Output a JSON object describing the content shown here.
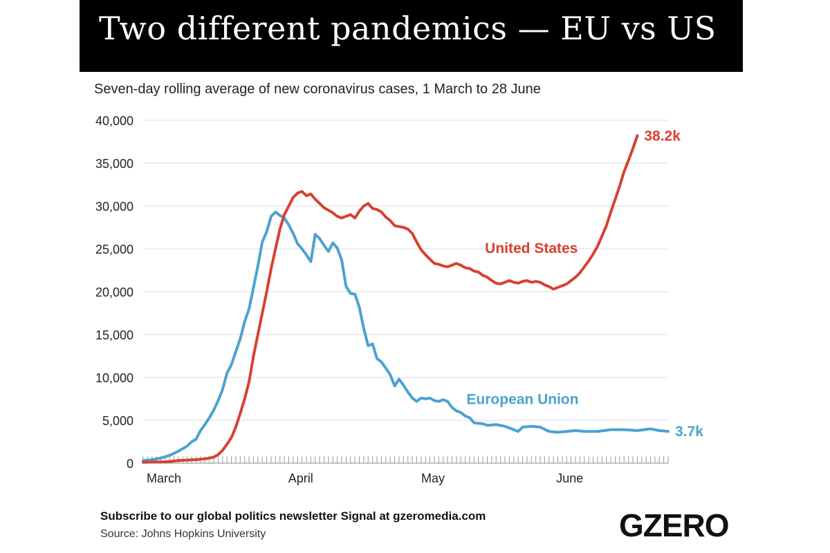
{
  "header": {
    "title": "Two different pandemics — EU vs US"
  },
  "chart_data": {
    "type": "line",
    "subtitle": "Seven-day rolling average of new coronavirus cases, 1 March to 28 June",
    "ylim": [
      0,
      40000
    ],
    "yticks": [
      0,
      5000,
      10000,
      15000,
      20000,
      25000,
      30000,
      35000,
      40000
    ],
    "ytick_labels": [
      "0",
      "5,000",
      "10,000",
      "15,000",
      "20,000",
      "25,000",
      "30,000",
      "35,000",
      "40,000"
    ],
    "x_day_range": [
      0,
      119
    ],
    "month_labels": [
      {
        "label": "March",
        "day": 0
      },
      {
        "label": "April",
        "day": 31
      },
      {
        "label": "May",
        "day": 61
      },
      {
        "label": "June",
        "day": 92
      }
    ],
    "series": [
      {
        "name": "European Union",
        "color": "#4aa3cf",
        "end_label": "3.7k",
        "points": [
          [
            0,
            300
          ],
          [
            2,
            400
          ],
          [
            4,
            600
          ],
          [
            6,
            900
          ],
          [
            8,
            1400
          ],
          [
            10,
            2000
          ],
          [
            11,
            2500
          ],
          [
            12,
            2800
          ],
          [
            13,
            3800
          ],
          [
            14,
            4500
          ],
          [
            15,
            5300
          ],
          [
            16,
            6200
          ],
          [
            17,
            7300
          ],
          [
            18,
            8600
          ],
          [
            19,
            10500
          ],
          [
            20,
            11500
          ],
          [
            21,
            13000
          ],
          [
            22,
            14500
          ],
          [
            23,
            16500
          ],
          [
            24,
            18000
          ],
          [
            25,
            20500
          ],
          [
            26,
            23000
          ],
          [
            27,
            25800
          ],
          [
            28,
            27000
          ],
          [
            29,
            28800
          ],
          [
            30,
            29300
          ],
          [
            31,
            28900
          ],
          [
            32,
            28600
          ],
          [
            33,
            27800
          ],
          [
            34,
            26800
          ],
          [
            35,
            25600
          ],
          [
            36,
            25000
          ],
          [
            37,
            24300
          ],
          [
            38,
            23500
          ],
          [
            39,
            26700
          ],
          [
            40,
            26200
          ],
          [
            41,
            25400
          ],
          [
            42,
            24700
          ],
          [
            43,
            25700
          ],
          [
            44,
            25100
          ],
          [
            45,
            23700
          ],
          [
            46,
            20600
          ],
          [
            47,
            19800
          ],
          [
            48,
            19700
          ],
          [
            49,
            18200
          ],
          [
            50,
            15700
          ],
          [
            51,
            13700
          ],
          [
            52,
            13900
          ],
          [
            53,
            12200
          ],
          [
            54,
            11800
          ],
          [
            55,
            11100
          ],
          [
            56,
            10300
          ],
          [
            57,
            9000
          ],
          [
            58,
            9800
          ],
          [
            59,
            9100
          ],
          [
            60,
            8300
          ],
          [
            61,
            7600
          ],
          [
            62,
            7200
          ],
          [
            63,
            7600
          ],
          [
            64,
            7500
          ],
          [
            65,
            7600
          ],
          [
            66,
            7300
          ],
          [
            67,
            7200
          ],
          [
            68,
            7400
          ],
          [
            69,
            7200
          ],
          [
            70,
            6500
          ],
          [
            71,
            6100
          ],
          [
            72,
            5900
          ],
          [
            73,
            5500
          ],
          [
            74,
            5300
          ],
          [
            75,
            4700
          ],
          [
            77,
            4600
          ],
          [
            78,
            4400
          ],
          [
            80,
            4500
          ],
          [
            82,
            4300
          ],
          [
            84,
            3900
          ],
          [
            85,
            3700
          ],
          [
            86,
            4200
          ],
          [
            88,
            4300
          ],
          [
            90,
            4200
          ],
          [
            92,
            3700
          ],
          [
            94,
            3600
          ],
          [
            96,
            3700
          ],
          [
            98,
            3800
          ],
          [
            100,
            3700
          ],
          [
            103,
            3700
          ],
          [
            106,
            3900
          ],
          [
            109,
            3900
          ],
          [
            112,
            3800
          ],
          [
            115,
            4000
          ],
          [
            117,
            3800
          ],
          [
            119,
            3700
          ]
        ]
      },
      {
        "name": "United States",
        "color": "#d8412f",
        "end_label": "38.2k",
        "points": [
          [
            0,
            100
          ],
          [
            5,
            150
          ],
          [
            8,
            300
          ],
          [
            12,
            400
          ],
          [
            14,
            500
          ],
          [
            16,
            700
          ],
          [
            17,
            1000
          ],
          [
            18,
            1500
          ],
          [
            19,
            2200
          ],
          [
            20,
            3000
          ],
          [
            21,
            4200
          ],
          [
            22,
            5800
          ],
          [
            23,
            7500
          ],
          [
            24,
            9500
          ],
          [
            25,
            12500
          ],
          [
            26,
            15000
          ],
          [
            27,
            17500
          ],
          [
            28,
            20000
          ],
          [
            29,
            22700
          ],
          [
            30,
            25000
          ],
          [
            31,
            27300
          ],
          [
            32,
            29000
          ],
          [
            33,
            30000
          ],
          [
            34,
            31000
          ],
          [
            35,
            31500
          ],
          [
            36,
            31700
          ],
          [
            37,
            31200
          ],
          [
            38,
            31400
          ],
          [
            39,
            30800
          ],
          [
            40,
            30300
          ],
          [
            41,
            29800
          ],
          [
            42,
            29500
          ],
          [
            43,
            29200
          ],
          [
            44,
            28800
          ],
          [
            45,
            28600
          ],
          [
            46,
            28800
          ],
          [
            47,
            29000
          ],
          [
            48,
            28600
          ],
          [
            49,
            29400
          ],
          [
            50,
            30000
          ],
          [
            51,
            30300
          ],
          [
            52,
            29700
          ],
          [
            53,
            29600
          ],
          [
            54,
            29300
          ],
          [
            55,
            28700
          ],
          [
            56,
            28300
          ],
          [
            57,
            27700
          ],
          [
            58,
            27600
          ],
          [
            59,
            27500
          ],
          [
            60,
            27300
          ],
          [
            61,
            26800
          ],
          [
            62,
            25800
          ],
          [
            63,
            24900
          ],
          [
            64,
            24300
          ],
          [
            65,
            23800
          ],
          [
            66,
            23300
          ],
          [
            67,
            23200
          ],
          [
            68,
            23000
          ],
          [
            69,
            22900
          ],
          [
            70,
            23100
          ],
          [
            71,
            23300
          ],
          [
            72,
            23100
          ],
          [
            73,
            22800
          ],
          [
            74,
            22700
          ],
          [
            75,
            22400
          ],
          [
            76,
            22300
          ],
          [
            77,
            21900
          ],
          [
            78,
            21700
          ],
          [
            79,
            21300
          ],
          [
            80,
            21000
          ],
          [
            81,
            20900
          ],
          [
            82,
            21100
          ],
          [
            83,
            21300
          ],
          [
            84,
            21100
          ],
          [
            85,
            21000
          ],
          [
            86,
            21200
          ],
          [
            87,
            21300
          ],
          [
            88,
            21100
          ],
          [
            89,
            21200
          ],
          [
            90,
            21100
          ],
          [
            91,
            20800
          ],
          [
            92,
            20600
          ],
          [
            93,
            20300
          ],
          [
            94,
            20500
          ],
          [
            95,
            20700
          ],
          [
            96,
            20900
          ],
          [
            97,
            21300
          ],
          [
            98,
            21700
          ],
          [
            99,
            22200
          ],
          [
            100,
            22900
          ],
          [
            101,
            23600
          ],
          [
            102,
            24400
          ],
          [
            103,
            25300
          ],
          [
            104,
            26500
          ],
          [
            105,
            27700
          ],
          [
            106,
            29300
          ],
          [
            107,
            30800
          ],
          [
            108,
            32300
          ],
          [
            109,
            34000
          ],
          [
            110,
            35300
          ],
          [
            111,
            36700
          ],
          [
            112,
            38200
          ]
        ]
      }
    ],
    "series_labels": [
      {
        "series": "United States",
        "text": "United States",
        "at": [
          88,
          24500
        ]
      },
      {
        "series": "European Union",
        "text": "European Union",
        "at": [
          86,
          6900
        ]
      }
    ]
  },
  "footer": {
    "newsletter": "Subscribe to our global politics newsletter Signal at gzeromedia.com",
    "source": "Source: Johns Hopkins University",
    "logo": "GZERO"
  }
}
